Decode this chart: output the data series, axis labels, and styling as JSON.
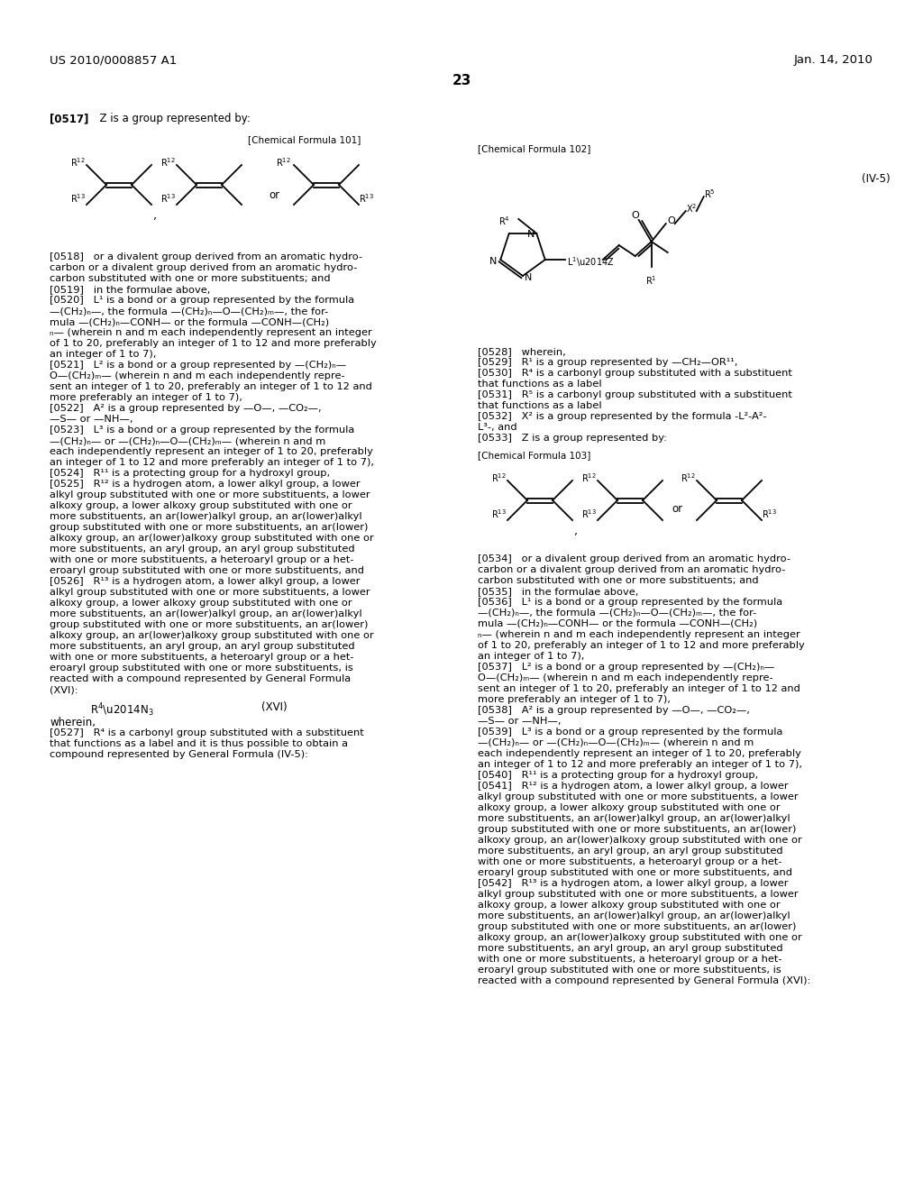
{
  "title_left": "US 2010/0008857 A1",
  "title_right": "Jan. 14, 2010",
  "page_number": "23",
  "bg": "#ffffff"
}
